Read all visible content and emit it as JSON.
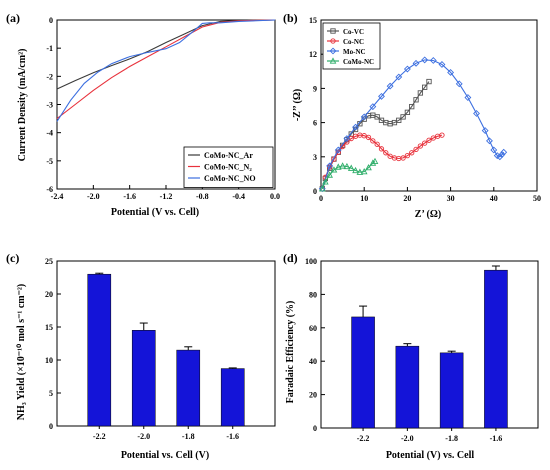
{
  "chart_data": [
    {
      "panel": "(a)",
      "type": "line",
      "xlabel": "Potential (V vs. Cell)",
      "ylabel": "Current Density (mA/cm²)",
      "xlim": [
        -2.4,
        0.0
      ],
      "ylim": [
        -6,
        0
      ],
      "xticks": [
        "-2.4",
        "-2.0",
        "-1.6",
        "-1.2",
        "-0.8",
        "-0.4",
        "0.0"
      ],
      "yticks": [
        "-6",
        "-5",
        "-4",
        "-3",
        "-2",
        "-1",
        "0"
      ],
      "legend_position": "bottom-right",
      "series": [
        {
          "name": "CoMo-NC_Ar",
          "color": "#3a3a3a",
          "x": [
            -2.4,
            -2.2,
            -2.0,
            -1.8,
            -1.6,
            -1.4,
            -1.2,
            -1.0,
            -0.8,
            -0.6,
            -0.4,
            -0.2,
            0.0
          ],
          "y": [
            -2.45,
            -2.15,
            -1.87,
            -1.62,
            -1.38,
            -1.12,
            -0.8,
            -0.5,
            -0.2,
            -0.05,
            -0.02,
            -0.01,
            0.0
          ]
        },
        {
          "name": "CoMo-NC_N₂",
          "color": "#e8323c",
          "x": [
            -2.4,
            -2.2,
            -2.0,
            -1.8,
            -1.6,
            -1.4,
            -1.2,
            -1.0,
            -0.8,
            -0.6,
            -0.4,
            -0.2,
            0.0
          ],
          "y": [
            -3.5,
            -3.0,
            -2.5,
            -2.05,
            -1.65,
            -1.3,
            -0.95,
            -0.6,
            -0.25,
            -0.08,
            -0.03,
            -0.01,
            0.0
          ]
        },
        {
          "name": "CoMo-NC_NO",
          "color": "#3c6fe0",
          "x": [
            -2.4,
            -2.25,
            -2.1,
            -1.95,
            -1.8,
            -1.6,
            -1.4,
            -1.2,
            -1.05,
            -0.9,
            -0.8,
            -0.72,
            -0.6,
            -0.4,
            0.0
          ],
          "y": [
            -3.6,
            -2.85,
            -2.25,
            -1.85,
            -1.55,
            -1.3,
            -1.15,
            -1.02,
            -0.8,
            -0.4,
            -0.12,
            -0.1,
            -0.1,
            -0.05,
            0.0
          ]
        }
      ]
    },
    {
      "panel": "(b)",
      "type": "line",
      "xlabel": "Z’ (Ω)",
      "ylabel": "-Z’’ (Ω)",
      "xlim": [
        0,
        50
      ],
      "ylim": [
        0,
        15
      ],
      "xticks": [
        "0",
        "10",
        "20",
        "30",
        "40",
        "50"
      ],
      "yticks": [
        "0",
        "3",
        "6",
        "9",
        "12",
        "15"
      ],
      "legend_position": "top-left",
      "series": [
        {
          "name": "Co-VC",
          "color": "#555555",
          "marker": "square",
          "x": [
            0.3,
            1,
            2,
            3,
            4,
            5,
            6,
            7,
            8,
            9,
            10,
            11,
            12,
            13,
            14,
            15,
            16,
            17,
            18,
            19,
            20,
            21,
            22,
            23,
            24,
            25
          ],
          "y": [
            0.2,
            1.1,
            2.0,
            2.8,
            3.4,
            4.0,
            4.5,
            5.0,
            5.4,
            5.9,
            6.3,
            6.6,
            6.65,
            6.5,
            6.2,
            6.0,
            5.9,
            6.0,
            6.2,
            6.5,
            6.9,
            7.4,
            8.0,
            8.6,
            9.1,
            9.6
          ]
        },
        {
          "name": "Co-NC",
          "color": "#e8323c",
          "marker": "circle",
          "x": [
            0.3,
            1,
            2,
            3,
            4,
            5,
            6,
            7,
            8,
            9,
            10,
            11,
            12,
            13,
            14,
            15,
            16,
            17,
            18,
            19,
            20,
            21,
            22,
            23,
            24,
            25,
            26,
            27,
            28
          ],
          "y": [
            0.2,
            1.2,
            2.1,
            2.8,
            3.4,
            3.9,
            4.3,
            4.6,
            4.8,
            4.9,
            4.85,
            4.7,
            4.4,
            4.1,
            3.7,
            3.35,
            3.05,
            2.9,
            2.85,
            2.9,
            3.1,
            3.35,
            3.65,
            3.95,
            4.2,
            4.45,
            4.65,
            4.8,
            4.9
          ]
        },
        {
          "name": "Mo-NC",
          "color": "#3c6fe0",
          "marker": "diamond",
          "x": [
            0.3,
            2,
            4,
            6,
            8,
            10,
            12,
            14,
            16,
            18,
            20,
            22,
            24,
            26,
            28,
            30,
            32,
            34,
            36,
            38,
            39,
            40,
            40.8,
            41.4,
            41.9,
            42.3
          ],
          "y": [
            0.2,
            2.2,
            3.6,
            4.6,
            5.6,
            6.5,
            7.4,
            8.3,
            9.2,
            10.0,
            10.7,
            11.2,
            11.5,
            11.45,
            11.1,
            10.4,
            9.4,
            8.2,
            6.8,
            5.3,
            4.4,
            3.6,
            3.1,
            3.0,
            3.2,
            3.4
          ]
        },
        {
          "name": "CoMo-NC",
          "color": "#2fae6a",
          "marker": "triangle",
          "x": [
            0.3,
            1,
            2,
            3,
            4,
            5,
            6,
            7,
            8,
            9,
            10,
            11,
            12,
            12.5
          ],
          "y": [
            0.2,
            0.8,
            1.4,
            1.85,
            2.1,
            2.2,
            2.15,
            2.0,
            1.8,
            1.65,
            1.7,
            2.05,
            2.45,
            2.6
          ]
        }
      ]
    },
    {
      "panel": "(c)",
      "type": "bar",
      "xlabel": "Potential vs. Cell (V)",
      "ylabel": "NH₃ Yield (×10⁻¹⁰ mol s⁻¹ cm⁻²)",
      "categories": [
        "-2.2",
        "-2.0",
        "-1.8",
        "-1.6"
      ],
      "values": [
        23.0,
        14.5,
        11.5,
        8.7
      ],
      "errors": [
        0.15,
        1.1,
        0.5,
        0.1
      ],
      "ylim": [
        0,
        25
      ],
      "yticks": [
        "0",
        "5",
        "10",
        "15",
        "20",
        "25"
      ],
      "bar_color": "#1414d8"
    },
    {
      "panel": "(d)",
      "type": "bar",
      "xlabel": "Potential (V) vs. Cell",
      "ylabel": "Faradaic Efficiency (%)",
      "categories": [
        "-2.2",
        "-2.0",
        "-1.8",
        "-1.6"
      ],
      "values": [
        66.5,
        49.0,
        45.0,
        94.5
      ],
      "errors": [
        6.5,
        1.5,
        1.0,
        2.5
      ],
      "ylim": [
        0,
        100
      ],
      "yticks": [
        "0",
        "20",
        "40",
        "60",
        "80",
        "100"
      ],
      "bar_color": "#1414d8"
    }
  ]
}
